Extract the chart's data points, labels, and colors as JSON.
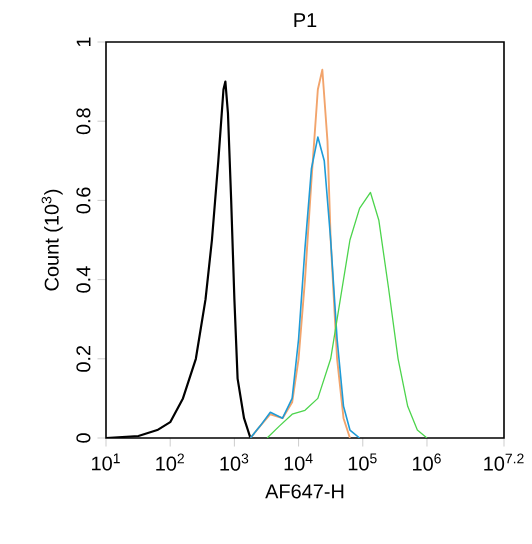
{
  "chart_data": {
    "type": "line",
    "title": "P1",
    "xlabel": "AF647-H",
    "ylabel": "Count (10$^{3}$)",
    "log": "x",
    "grid": false,
    "marker": "none",
    "line_style": "solid",
    "xlim": [
      10,
      15848932
    ],
    "ylim": [
      0,
      1
    ],
    "xticks": [
      {
        "value": 10,
        "label": "10$^{1}$"
      },
      {
        "value": 100,
        "label": "10$^{2}$"
      },
      {
        "value": 1000,
        "label": "10$^{3}$"
      },
      {
        "value": 10000,
        "label": "10$^{4}$"
      },
      {
        "value": 100000,
        "label": "10$^{5}$"
      },
      {
        "value": 1000000,
        "label": "10$^{6}$"
      },
      {
        "value": 15848932,
        "label": "10$^{7.2}$"
      }
    ],
    "yticks": [
      0,
      0.2,
      0.4,
      0.6,
      0.8,
      1
    ],
    "series": [
      {
        "color": "#000000",
        "x": [
          10,
          32,
          63,
          100,
          158,
          251,
          355,
          447,
          562,
          676,
          724,
          794,
          891,
          1000,
          1122,
          1413,
          1778
        ],
        "values": [
          0,
          0.005,
          0.02,
          0.04,
          0.1,
          0.2,
          0.35,
          0.5,
          0.7,
          0.88,
          0.9,
          0.82,
          0.6,
          0.35,
          0.15,
          0.05,
          0
        ]
      },
      {
        "color": "#f2a46c",
        "x": [
          1778,
          2512,
          3631,
          5623,
          7943,
          10000,
          12589,
          15849,
          19953,
          23442,
          28184,
          31623,
          39811,
          50119,
          63096
        ],
        "values": [
          0,
          0.03,
          0.06,
          0.05,
          0.09,
          0.2,
          0.4,
          0.65,
          0.88,
          0.93,
          0.75,
          0.5,
          0.2,
          0.05,
          0
        ]
      },
      {
        "color": "#1e9bd7",
        "x": [
          1778,
          2512,
          3631,
          5623,
          7943,
          10000,
          12589,
          15849,
          19953,
          25119,
          31623,
          39811,
          50119,
          63096,
          89125
        ],
        "values": [
          0,
          0.03,
          0.065,
          0.05,
          0.1,
          0.25,
          0.48,
          0.68,
          0.76,
          0.7,
          0.5,
          0.25,
          0.08,
          0.02,
          0
        ]
      },
      {
        "color": "#4cd44c",
        "x": [
          3236,
          5012,
          7943,
          12589,
          19953,
          31623,
          44668,
          63096,
          89125,
          131826,
          177828,
          251189,
          354813,
          501187,
          707946,
          1000000
        ],
        "values": [
          0,
          0.03,
          0.06,
          0.07,
          0.1,
          0.2,
          0.35,
          0.5,
          0.58,
          0.62,
          0.55,
          0.38,
          0.2,
          0.08,
          0.02,
          0
        ]
      }
    ]
  }
}
